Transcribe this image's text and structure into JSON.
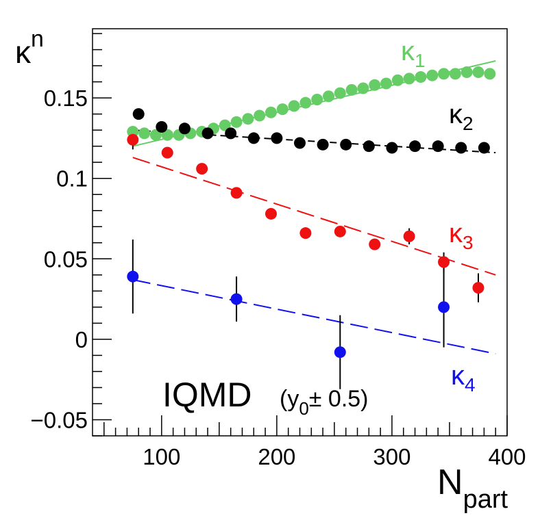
{
  "chart_data": {
    "type": "scatter",
    "title": "",
    "xlabel": {
      "main": "N",
      "sub": "part"
    },
    "ylabel": {
      "main": "κ",
      "sub": "n"
    },
    "xlim": [
      40,
      400
    ],
    "ylim": [
      -0.06,
      0.193
    ],
    "x_major_ticks": [
      100,
      200,
      300,
      400
    ],
    "x_tick_labels": [
      "100",
      "200",
      "300",
      "400"
    ],
    "y_major_ticks": [
      -0.05,
      0,
      0.05,
      0.1,
      0.15
    ],
    "y_tick_labels": [
      "−0.05",
      "0",
      "0.05",
      "0.1",
      "0.15"
    ],
    "annotation": {
      "main": "IQMD",
      "detail_pre": "(y",
      "detail_sub": "0",
      "detail_post": "± 0.5)"
    },
    "series": [
      {
        "name": "κ1",
        "label_main": "κ",
        "label_sub": "1",
        "color": "#66cc66",
        "points": [
          {
            "x": 75,
            "y": 0.129
          },
          {
            "x": 85,
            "y": 0.128
          },
          {
            "x": 95,
            "y": 0.127
          },
          {
            "x": 105,
            "y": 0.127
          },
          {
            "x": 115,
            "y": 0.127
          },
          {
            "x": 125,
            "y": 0.128
          },
          {
            "x": 135,
            "y": 0.129
          },
          {
            "x": 145,
            "y": 0.131
          },
          {
            "x": 155,
            "y": 0.133
          },
          {
            "x": 165,
            "y": 0.135
          },
          {
            "x": 175,
            "y": 0.137
          },
          {
            "x": 185,
            "y": 0.139
          },
          {
            "x": 195,
            "y": 0.141
          },
          {
            "x": 205,
            "y": 0.143
          },
          {
            "x": 215,
            "y": 0.145
          },
          {
            "x": 225,
            "y": 0.147
          },
          {
            "x": 235,
            "y": 0.149
          },
          {
            "x": 245,
            "y": 0.151
          },
          {
            "x": 255,
            "y": 0.153
          },
          {
            "x": 265,
            "y": 0.155
          },
          {
            "x": 275,
            "y": 0.156
          },
          {
            "x": 285,
            "y": 0.158
          },
          {
            "x": 295,
            "y": 0.159
          },
          {
            "x": 305,
            "y": 0.161
          },
          {
            "x": 315,
            "y": 0.162
          },
          {
            "x": 325,
            "y": 0.163
          },
          {
            "x": 335,
            "y": 0.164
          },
          {
            "x": 345,
            "y": 0.165
          },
          {
            "x": 355,
            "y": 0.165
          },
          {
            "x": 365,
            "y": 0.166
          },
          {
            "x": 375,
            "y": 0.166
          },
          {
            "x": 385,
            "y": 0.165
          }
        ],
        "fit": {
          "x1": 75,
          "y1": 0.12,
          "x2": 390,
          "y2": 0.173,
          "style": "solid"
        }
      },
      {
        "name": "κ2",
        "label_main": "κ",
        "label_sub": "2",
        "color": "#000000",
        "points": [
          {
            "x": 80,
            "y": 0.14
          },
          {
            "x": 100,
            "y": 0.132
          },
          {
            "x": 120,
            "y": 0.131
          },
          {
            "x": 140,
            "y": 0.128
          },
          {
            "x": 160,
            "y": 0.128
          },
          {
            "x": 180,
            "y": 0.125
          },
          {
            "x": 200,
            "y": 0.125
          },
          {
            "x": 220,
            "y": 0.122
          },
          {
            "x": 240,
            "y": 0.121
          },
          {
            "x": 260,
            "y": 0.121
          },
          {
            "x": 280,
            "y": 0.12
          },
          {
            "x": 300,
            "y": 0.119
          },
          {
            "x": 320,
            "y": 0.12
          },
          {
            "x": 340,
            "y": 0.12
          },
          {
            "x": 360,
            "y": 0.119
          },
          {
            "x": 380,
            "y": 0.119
          }
        ],
        "fit": {
          "x1": 75,
          "y1": 0.13,
          "x2": 390,
          "y2": 0.116,
          "style": "dashed"
        }
      },
      {
        "name": "κ3",
        "label_main": "κ",
        "label_sub": "3",
        "color": "#ee1111",
        "points": [
          {
            "x": 75,
            "y": 0.124,
            "err": 0.006
          },
          {
            "x": 105,
            "y": 0.116
          },
          {
            "x": 135,
            "y": 0.106
          },
          {
            "x": 165,
            "y": 0.091
          },
          {
            "x": 195,
            "y": 0.078
          },
          {
            "x": 225,
            "y": 0.066
          },
          {
            "x": 255,
            "y": 0.067
          },
          {
            "x": 285,
            "y": 0.059
          },
          {
            "x": 315,
            "y": 0.064,
            "err": 0.005
          },
          {
            "x": 345,
            "y": 0.048,
            "err": 0.006
          },
          {
            "x": 375,
            "y": 0.032,
            "err": 0.009
          }
        ],
        "fit": {
          "x1": 75,
          "y1": 0.113,
          "x2": 390,
          "y2": 0.04,
          "style": "dashed"
        }
      },
      {
        "name": "κ4",
        "label_main": "κ",
        "label_sub": "4",
        "color": "#1111ee",
        "points": [
          {
            "x": 75,
            "y": 0.039,
            "err": 0.023
          },
          {
            "x": 165,
            "y": 0.025,
            "err": 0.014
          },
          {
            "x": 255,
            "y": -0.008,
            "err": 0.023
          },
          {
            "x": 345,
            "y": 0.02,
            "err": 0.025
          }
        ],
        "fit": {
          "x1": 75,
          "y1": 0.037,
          "x2": 390,
          "y2": -0.009,
          "style": "dashed"
        }
      }
    ]
  }
}
